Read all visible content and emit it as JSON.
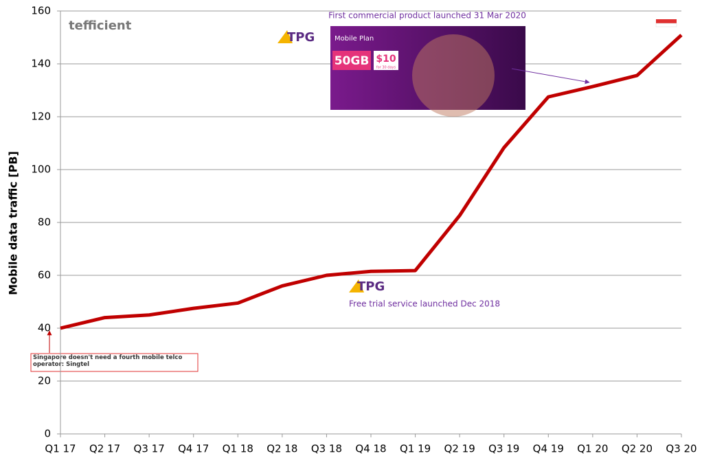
{
  "chart_data": {
    "type": "line",
    "y_label": "Mobile data traffic [PB]",
    "categories": [
      "Q1 17",
      "Q2 17",
      "Q3 17",
      "Q4 17",
      "Q1 18",
      "Q2 18",
      "Q3 18",
      "Q4 18",
      "Q1 19",
      "Q2 19",
      "Q3 19",
      "Q4 19",
      "Q1 20",
      "Q2 20",
      "Q3 20"
    ],
    "series": [
      {
        "color": "#c00000",
        "values": [
          40,
          44,
          45,
          47.5,
          49.5,
          56,
          60,
          61.5,
          61.8,
          82.6,
          108.3,
          127.5,
          131.4,
          135.6,
          150.9
        ]
      }
    ],
    "ylim": [
      0,
      160
    ],
    "yticks": [
      0,
      20,
      40,
      60,
      80,
      100,
      120,
      140,
      160
    ],
    "grid": true,
    "annotations": [
      "First commercial product launched 31 Mar 2020",
      "Free trial service launched Dec 2018",
      "Singapore doesn't need a fourth mobile telco operator: Singtel"
    ],
    "logos": [
      "tefficient",
      "TPG"
    ],
    "ad": [
      "Mobile Plan",
      "50GB",
      "$10",
      "for 30 days"
    ]
  }
}
